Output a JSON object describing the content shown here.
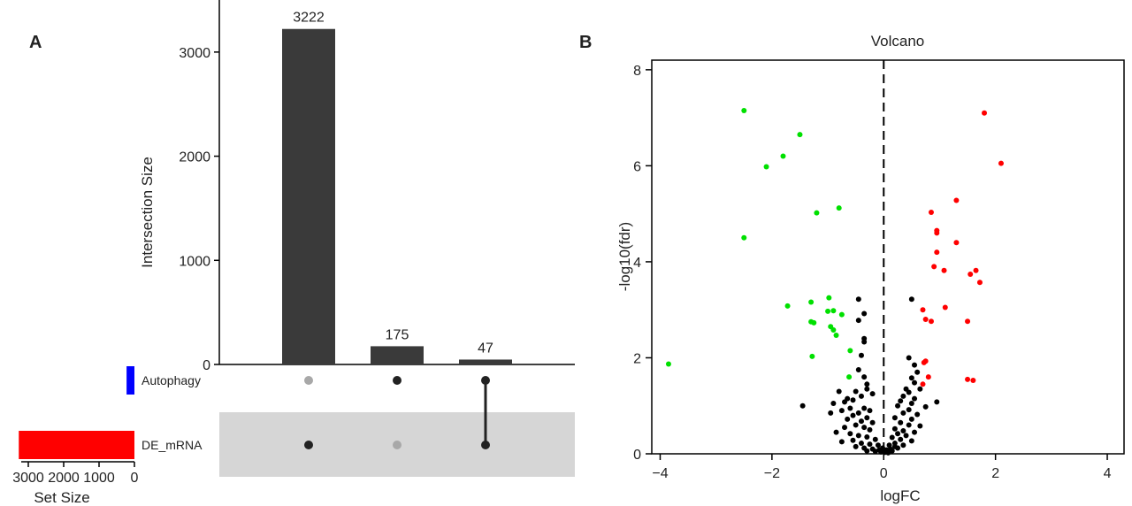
{
  "panels": {
    "a_label": "A",
    "b_label": "B"
  },
  "chart_data": [
    {
      "type": "upset",
      "title": "",
      "ylabel": "Intersection Size",
      "ylim": [
        0,
        3500
      ],
      "yticks": [
        0,
        1000,
        2000,
        3000
      ],
      "sets": [
        {
          "name": "Autophagy",
          "size": 222,
          "color": "#0000ff"
        },
        {
          "name": "DE_mRNA",
          "size": 3269,
          "color": "#ff0000"
        }
      ],
      "set_size_label": "Set Size",
      "set_size_ticks": [
        3000,
        2000,
        1000,
        0
      ],
      "intersections": [
        {
          "label": "3222",
          "value": 3222,
          "sets": [
            "DE_mRNA"
          ]
        },
        {
          "label": "175",
          "value": 175,
          "sets": [
            "Autophagy"
          ]
        },
        {
          "label": "47",
          "value": 47,
          "sets": [
            "Autophagy",
            "DE_mRNA"
          ]
        }
      ],
      "colors": {
        "bar": "#3a3a3a",
        "dot_active": "#222222",
        "dot_inactive": "#a8a8a8",
        "stripe": "#d6d6d6"
      }
    },
    {
      "type": "scatter",
      "title": "Volcano",
      "xlabel": "logFC",
      "ylabel": "-log10(fdr)",
      "xlim": [
        -4.15,
        4.3
      ],
      "ylim": [
        0,
        8.2
      ],
      "xticks": [
        -4,
        -2,
        0,
        2,
        4
      ],
      "yticks": [
        0,
        2,
        4,
        6,
        8
      ],
      "reference_line": {
        "x": 0,
        "style": "dashed"
      },
      "series": [
        {
          "color": "#00e000",
          "points": [
            [
              -2.5,
              7.15
            ],
            [
              -1.5,
              6.65
            ],
            [
              -1.8,
              6.2
            ],
            [
              -2.1,
              5.98
            ],
            [
              -0.8,
              5.12
            ],
            [
              -1.2,
              5.02
            ],
            [
              -2.5,
              4.5
            ],
            [
              -3.85,
              1.87
            ],
            [
              -1.72,
              3.08
            ],
            [
              -1.3,
              3.16
            ],
            [
              -0.98,
              3.25
            ],
            [
              -0.9,
              2.98
            ],
            [
              -1.0,
              2.97
            ],
            [
              -0.75,
              2.9
            ],
            [
              -1.3,
              2.75
            ],
            [
              -1.25,
              2.73
            ],
            [
              -0.95,
              2.65
            ],
            [
              -0.9,
              2.58
            ],
            [
              -0.85,
              2.47
            ],
            [
              -0.6,
              2.15
            ],
            [
              -1.28,
              2.03
            ],
            [
              -0.62,
              1.6
            ]
          ]
        },
        {
          "color": "#ff0000",
          "points": [
            [
              1.8,
              7.1
            ],
            [
              2.1,
              6.05
            ],
            [
              1.3,
              5.28
            ],
            [
              0.85,
              5.03
            ],
            [
              0.95,
              4.65
            ],
            [
              0.95,
              4.6
            ],
            [
              1.3,
              4.4
            ],
            [
              0.95,
              4.2
            ],
            [
              0.9,
              3.9
            ],
            [
              1.08,
              3.82
            ],
            [
              1.65,
              3.82
            ],
            [
              1.55,
              3.74
            ],
            [
              1.72,
              3.57
            ],
            [
              0.7,
              3.0
            ],
            [
              1.1,
              3.05
            ],
            [
              0.75,
              2.8
            ],
            [
              0.85,
              2.76
            ],
            [
              1.5,
              2.76
            ],
            [
              0.75,
              1.93
            ],
            [
              0.72,
              1.9
            ],
            [
              0.8,
              1.6
            ],
            [
              0.7,
              1.45
            ],
            [
              1.5,
              1.55
            ],
            [
              1.6,
              1.53
            ]
          ]
        },
        {
          "color": "#000000",
          "points": [
            [
              -0.45,
              3.22
            ],
            [
              -0.35,
              2.92
            ],
            [
              -0.45,
              2.78
            ],
            [
              -0.35,
              2.4
            ],
            [
              -0.35,
              2.33
            ],
            [
              -0.4,
              2.05
            ],
            [
              -0.45,
              1.75
            ],
            [
              -0.35,
              1.6
            ],
            [
              -0.3,
              1.45
            ],
            [
              -0.5,
              1.3
            ],
            [
              -0.4,
              1.2
            ],
            [
              -0.55,
              1.12
            ],
            [
              -0.7,
              1.08
            ],
            [
              -1.45,
              1.0
            ],
            [
              -0.9,
              1.05
            ],
            [
              -0.6,
              0.95
            ],
            [
              -0.35,
              0.95
            ],
            [
              -0.25,
              0.9
            ],
            [
              -0.75,
              0.9
            ],
            [
              -0.45,
              0.85
            ],
            [
              -0.95,
              0.85
            ],
            [
              -0.55,
              0.8
            ],
            [
              -0.3,
              0.75
            ],
            [
              -0.65,
              0.72
            ],
            [
              -0.4,
              0.68
            ],
            [
              -0.2,
              0.65
            ],
            [
              -0.5,
              0.6
            ],
            [
              -0.7,
              0.55
            ],
            [
              -0.35,
              0.55
            ],
            [
              -0.25,
              0.5
            ],
            [
              -0.85,
              0.45
            ],
            [
              -0.6,
              0.42
            ],
            [
              -0.45,
              0.38
            ],
            [
              -0.3,
              0.35
            ],
            [
              -0.15,
              0.3
            ],
            [
              -0.55,
              0.28
            ],
            [
              -0.75,
              0.25
            ],
            [
              -0.4,
              0.22
            ],
            [
              -0.25,
              0.2
            ],
            [
              -0.1,
              0.18
            ],
            [
              -0.5,
              0.15
            ],
            [
              -0.35,
              0.12
            ],
            [
              -0.2,
              0.1
            ],
            [
              -0.08,
              0.08
            ],
            [
              -0.3,
              0.06
            ],
            [
              -0.15,
              0.05
            ],
            [
              -0.05,
              0.04
            ],
            [
              0.02,
              0.03
            ],
            [
              0.05,
              0.08
            ],
            [
              0.12,
              0.1
            ],
            [
              0.08,
              0.02
            ],
            [
              -0.02,
              0.12
            ],
            [
              0.2,
              0.15
            ],
            [
              0.15,
              0.06
            ],
            [
              -0.65,
              1.15
            ],
            [
              -0.2,
              1.25
            ],
            [
              -0.8,
              1.3
            ],
            [
              -0.3,
              1.35
            ],
            [
              0.5,
              3.22
            ],
            [
              0.45,
              2.0
            ],
            [
              0.55,
              1.85
            ],
            [
              0.6,
              1.7
            ],
            [
              0.5,
              1.58
            ],
            [
              0.55,
              1.48
            ],
            [
              0.4,
              1.35
            ],
            [
              0.65,
              1.35
            ],
            [
              0.45,
              1.28
            ],
            [
              0.35,
              1.2
            ],
            [
              0.55,
              1.15
            ],
            [
              0.3,
              1.1
            ],
            [
              0.95,
              1.08
            ],
            [
              0.5,
              1.05
            ],
            [
              0.25,
              1.0
            ],
            [
              0.75,
              0.98
            ],
            [
              0.45,
              0.92
            ],
            [
              0.35,
              0.85
            ],
            [
              0.6,
              0.82
            ],
            [
              0.2,
              0.75
            ],
            [
              0.5,
              0.72
            ],
            [
              0.3,
              0.65
            ],
            [
              0.45,
              0.6
            ],
            [
              0.65,
              0.58
            ],
            [
              0.2,
              0.52
            ],
            [
              0.35,
              0.48
            ],
            [
              0.55,
              0.45
            ],
            [
              0.25,
              0.42
            ],
            [
              0.4,
              0.38
            ],
            [
              0.15,
              0.34
            ],
            [
              0.3,
              0.3
            ],
            [
              0.5,
              0.27
            ],
            [
              0.2,
              0.22
            ],
            [
              0.1,
              0.18
            ],
            [
              0.35,
              0.18
            ],
            [
              0.25,
              0.12
            ]
          ]
        }
      ]
    }
  ]
}
